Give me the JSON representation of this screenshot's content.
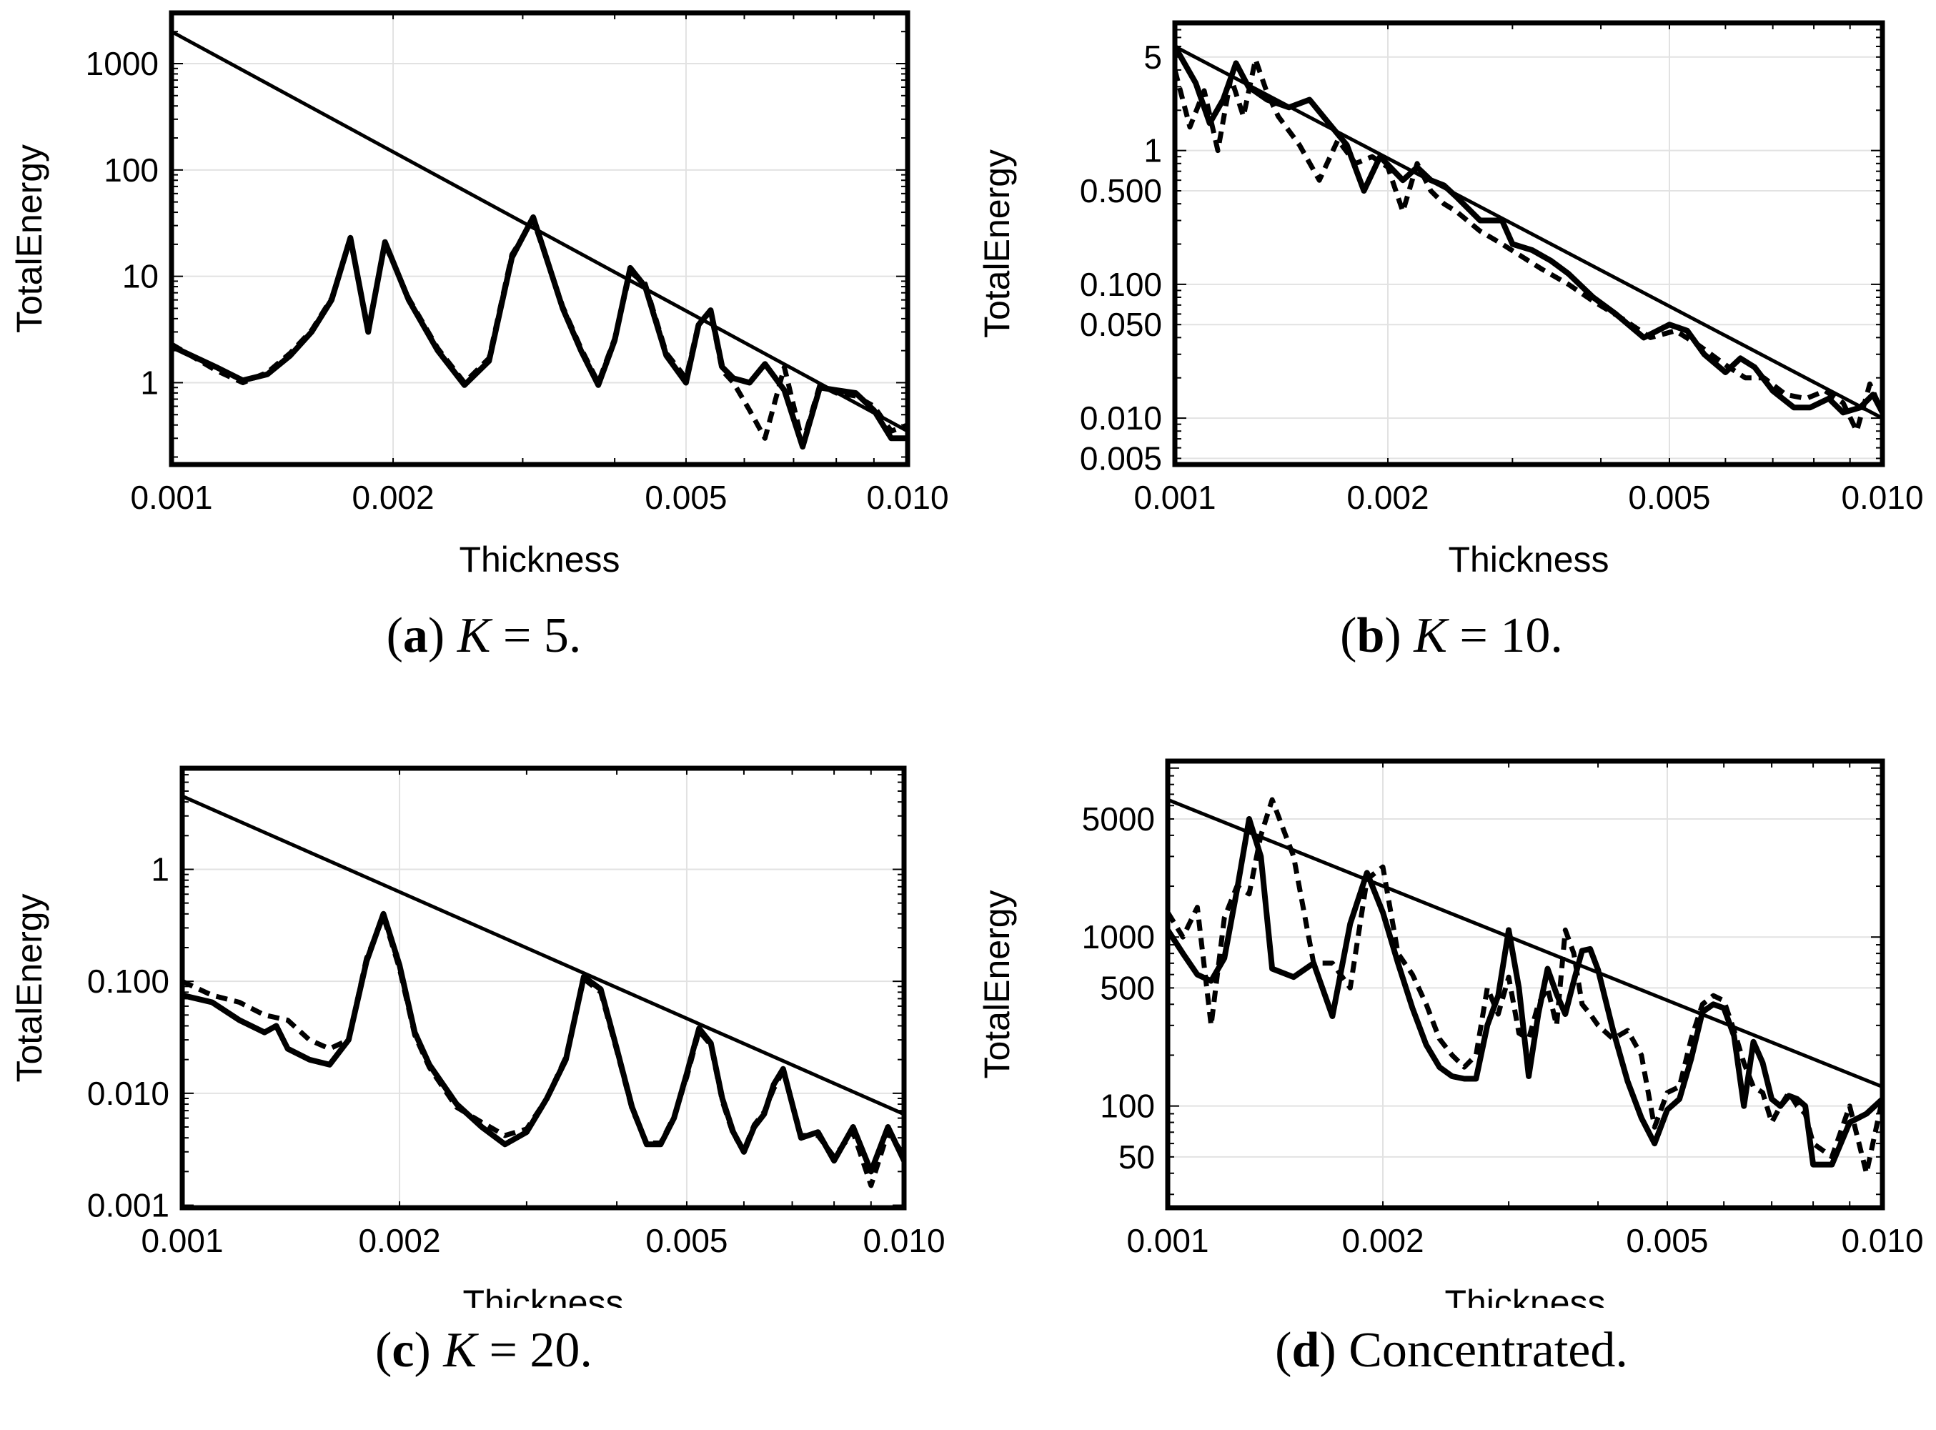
{
  "chart_data": [
    {
      "type": "line",
      "scale": "log-log",
      "xlabel": "Thickness",
      "ylabel": "TotalEnergy",
      "xlim": [
        0.001,
        0.01
      ],
      "ylim": [
        0.17,
        3000
      ],
      "xticks": [
        {
          "v": 0.001,
          "label": "0.001"
        },
        {
          "v": 0.002,
          "label": "0.002"
        },
        {
          "v": 0.005,
          "label": "0.005"
        },
        {
          "v": 0.01,
          "label": "0.010"
        }
      ],
      "yticks": [
        {
          "v": 1,
          "label": "1"
        },
        {
          "v": 10,
          "label": "10"
        },
        {
          "v": 100,
          "label": "100"
        },
        {
          "v": 1000,
          "label": "1000"
        }
      ],
      "caption": {
        "letter": "a",
        "var": "K",
        "eq": " = 5."
      },
      "series": [
        {
          "name": "bound",
          "style": "thin",
          "x": [
            0.001,
            0.01
          ],
          "y": [
            2000,
            0.35
          ]
        },
        {
          "name": "solid",
          "style": "solid",
          "x": [
            0.001,
            0.00115,
            0.00125,
            0.00135,
            0.00145,
            0.00155,
            0.00165,
            0.00175,
            0.00185,
            0.00195,
            0.0021,
            0.0023,
            0.0025,
            0.0027,
            0.0029,
            0.0031,
            0.0034,
            0.0036,
            0.0038,
            0.004,
            0.0042,
            0.0044,
            0.0047,
            0.005,
            0.0052,
            0.0054,
            0.0056,
            0.0058,
            0.0061,
            0.0064,
            0.0068,
            0.0072,
            0.0076,
            0.008,
            0.0085,
            0.009,
            0.0095,
            0.01
          ],
          "y": [
            2.2,
            1.4,
            1.05,
            1.2,
            1.8,
            3,
            6,
            23,
            3,
            21,
            6,
            2,
            0.95,
            1.6,
            15,
            36,
            5,
            2,
            0.95,
            2.5,
            12,
            8,
            1.8,
            1,
            3.5,
            4.8,
            1.4,
            1.1,
            1,
            1.5,
            0.85,
            0.25,
            0.9,
            0.85,
            0.8,
            0.55,
            0.3,
            0.3
          ]
        },
        {
          "name": "dashed",
          "style": "dashed",
          "x": [
            0.001,
            0.00115,
            0.00125,
            0.00135,
            0.00145,
            0.00155,
            0.00165,
            0.00175,
            0.00185,
            0.00195,
            0.0021,
            0.0023,
            0.0025,
            0.0027,
            0.0029,
            0.0031,
            0.0034,
            0.0036,
            0.0038,
            0.004,
            0.0042,
            0.0044,
            0.0047,
            0.005,
            0.0052,
            0.0054,
            0.0056,
            0.0058,
            0.0061,
            0.0064,
            0.0068,
            0.0072,
            0.0076,
            0.008,
            0.0085,
            0.009,
            0.0095,
            0.01
          ],
          "y": [
            2.3,
            1.3,
            1,
            1.25,
            1.9,
            3.1,
            6.2,
            22,
            3.2,
            20,
            6.2,
            2.1,
            1,
            1.7,
            16,
            34,
            5.2,
            2.1,
            1,
            2.6,
            11,
            8.5,
            1.9,
            1.1,
            3.6,
            4.6,
            1.3,
            1,
            0.55,
            0.3,
            1.4,
            0.27,
            0.95,
            0.8,
            0.75,
            0.6,
            0.35,
            0.4
          ]
        }
      ]
    },
    {
      "type": "line",
      "scale": "log-log",
      "xlabel": "Thickness",
      "ylabel": "TotalEnergy",
      "xlim": [
        0.001,
        0.01
      ],
      "ylim": [
        0.0045,
        9
      ],
      "xticks": [
        {
          "v": 0.001,
          "label": "0.001"
        },
        {
          "v": 0.002,
          "label": "0.002"
        },
        {
          "v": 0.005,
          "label": "0.005"
        },
        {
          "v": 0.01,
          "label": "0.010"
        }
      ],
      "yticks": [
        {
          "v": 0.005,
          "label": "0.005"
        },
        {
          "v": 0.01,
          "label": "0.010"
        },
        {
          "v": 0.05,
          "label": "0.050"
        },
        {
          "v": 0.1,
          "label": "0.100"
        },
        {
          "v": 0.5,
          "label": "0.500"
        },
        {
          "v": 1,
          "label": "1"
        },
        {
          "v": 5,
          "label": "5"
        }
      ],
      "caption": {
        "letter": "b",
        "var": "K",
        "eq": " = 10."
      },
      "series": [
        {
          "name": "bound",
          "style": "thin",
          "x": [
            0.001,
            0.01
          ],
          "y": [
            6,
            0.01
          ]
        },
        {
          "name": "solid",
          "style": "solid",
          "x": [
            0.001,
            0.00107,
            0.00112,
            0.00117,
            0.00122,
            0.00127,
            0.00135,
            0.00145,
            0.00155,
            0.00165,
            0.00175,
            0.00185,
            0.00195,
            0.0021,
            0.0022,
            0.0023,
            0.0024,
            0.0025,
            0.0027,
            0.0029,
            0.003,
            0.0032,
            0.0034,
            0.0036,
            0.0039,
            0.0042,
            0.0046,
            0.005,
            0.0053,
            0.0056,
            0.006,
            0.0063,
            0.0066,
            0.007,
            0.0075,
            0.0079,
            0.0084,
            0.0088,
            0.0093,
            0.0097,
            0.01
          ],
          "y": [
            6,
            3.2,
            1.6,
            2.4,
            4.5,
            3,
            2.4,
            2.1,
            2.4,
            1.6,
            1.1,
            0.5,
            0.9,
            0.6,
            0.75,
            0.6,
            0.55,
            0.45,
            0.3,
            0.3,
            0.2,
            0.18,
            0.15,
            0.12,
            0.08,
            0.06,
            0.04,
            0.05,
            0.045,
            0.03,
            0.022,
            0.028,
            0.024,
            0.016,
            0.012,
            0.012,
            0.014,
            0.011,
            0.012,
            0.015,
            0.011
          ]
        },
        {
          "name": "dashed",
          "style": "dashed",
          "x": [
            0.001,
            0.00105,
            0.0011,
            0.00115,
            0.0012,
            0.00125,
            0.0013,
            0.00135,
            0.0014,
            0.0015,
            0.0016,
            0.0017,
            0.0018,
            0.0019,
            0.002,
            0.0021,
            0.0022,
            0.0023,
            0.0024,
            0.0025,
            0.0027,
            0.0029,
            0.0031,
            0.0033,
            0.0036,
            0.0039,
            0.0043,
            0.0047,
            0.0051,
            0.0055,
            0.006,
            0.0064,
            0.0068,
            0.0073,
            0.0078,
            0.0083,
            0.0088,
            0.0092,
            0.0096,
            0.01
          ],
          "y": [
            4,
            1.5,
            2.8,
            1,
            3.5,
            1.8,
            4.8,
            2.7,
            1.8,
            1.1,
            0.6,
            1.2,
            0.8,
            0.9,
            0.75,
            0.35,
            0.8,
            0.5,
            0.4,
            0.35,
            0.25,
            0.2,
            0.16,
            0.13,
            0.1,
            0.075,
            0.055,
            0.04,
            0.045,
            0.035,
            0.025,
            0.02,
            0.02,
            0.015,
            0.014,
            0.016,
            0.013,
            0.008,
            0.018,
            0.011
          ]
        }
      ]
    },
    {
      "type": "line",
      "scale": "log-log",
      "xlabel": "Thickness",
      "ylabel": "TotalEnergy",
      "xlim": [
        0.001,
        0.01
      ],
      "ylim": [
        0.00095,
        8
      ],
      "xticks": [
        {
          "v": 0.001,
          "label": "0.001"
        },
        {
          "v": 0.002,
          "label": "0.002"
        },
        {
          "v": 0.005,
          "label": "0.005"
        },
        {
          "v": 0.01,
          "label": "0.010"
        }
      ],
      "yticks": [
        {
          "v": 0.001,
          "label": "0.001"
        },
        {
          "v": 0.01,
          "label": "0.010"
        },
        {
          "v": 0.1,
          "label": "0.100"
        },
        {
          "v": 1,
          "label": "1"
        }
      ],
      "caption": {
        "letter": "c",
        "var": "K",
        "eq": " = 20."
      },
      "series": [
        {
          "name": "bound",
          "style": "thin",
          "x": [
            0.001,
            0.01
          ],
          "y": [
            4.5,
            0.0065
          ]
        },
        {
          "name": "solid",
          "style": "solid",
          "x": [
            0.001,
            0.0011,
            0.0012,
            0.0013,
            0.00135,
            0.0014,
            0.0015,
            0.0016,
            0.0017,
            0.0018,
            0.0019,
            0.002,
            0.0021,
            0.0022,
            0.0024,
            0.0026,
            0.0028,
            0.003,
            0.0032,
            0.0034,
            0.0036,
            0.0038,
            0.004,
            0.0042,
            0.0044,
            0.0046,
            0.0048,
            0.005,
            0.0052,
            0.0054,
            0.0056,
            0.0058,
            0.006,
            0.0062,
            0.0064,
            0.0066,
            0.0068,
            0.0072,
            0.0076,
            0.008,
            0.0085,
            0.009,
            0.0095,
            0.01
          ],
          "y": [
            0.075,
            0.065,
            0.045,
            0.035,
            0.04,
            0.025,
            0.02,
            0.018,
            0.03,
            0.15,
            0.4,
            0.14,
            0.035,
            0.018,
            0.008,
            0.005,
            0.0035,
            0.0045,
            0.009,
            0.02,
            0.11,
            0.085,
            0.025,
            0.0075,
            0.0035,
            0.0035,
            0.006,
            0.015,
            0.038,
            0.028,
            0.009,
            0.0045,
            0.003,
            0.005,
            0.0065,
            0.012,
            0.0165,
            0.004,
            0.0045,
            0.0025,
            0.005,
            0.002,
            0.005,
            0.0025
          ]
        },
        {
          "name": "dashed",
          "style": "dashed",
          "x": [
            0.001,
            0.0011,
            0.0012,
            0.0013,
            0.0014,
            0.0015,
            0.0016,
            0.0017,
            0.0018,
            0.0019,
            0.002,
            0.0021,
            0.0022,
            0.0024,
            0.0026,
            0.0028,
            0.003,
            0.0032,
            0.0034,
            0.0036,
            0.0038,
            0.004,
            0.0042,
            0.0044,
            0.0046,
            0.0048,
            0.005,
            0.0052,
            0.0054,
            0.0056,
            0.0058,
            0.006,
            0.0062,
            0.0064,
            0.0066,
            0.0068,
            0.0072,
            0.0076,
            0.008,
            0.0085,
            0.009,
            0.0095,
            0.01
          ],
          "y": [
            0.1,
            0.075,
            0.065,
            0.05,
            0.045,
            0.03,
            0.025,
            0.03,
            0.16,
            0.38,
            0.13,
            0.033,
            0.017,
            0.0075,
            0.0055,
            0.0042,
            0.0048,
            0.009,
            0.021,
            0.105,
            0.08,
            0.024,
            0.0072,
            0.0036,
            0.0036,
            0.0062,
            0.014,
            0.036,
            0.027,
            0.0085,
            0.0043,
            0.0031,
            0.0052,
            0.0068,
            0.011,
            0.016,
            0.0042,
            0.0042,
            0.0027,
            0.0045,
            0.0015,
            0.0045,
            0.0028
          ]
        }
      ]
    },
    {
      "type": "line",
      "scale": "log-log",
      "xlabel": "Thickness",
      "ylabel": "TotalEnergy",
      "xlim": [
        0.001,
        0.01
      ],
      "ylim": [
        25,
        11000
      ],
      "xticks": [
        {
          "v": 0.001,
          "label": "0.001"
        },
        {
          "v": 0.002,
          "label": "0.002"
        },
        {
          "v": 0.005,
          "label": "0.005"
        },
        {
          "v": 0.01,
          "label": "0.010"
        }
      ],
      "yticks": [
        {
          "v": 50,
          "label": "50"
        },
        {
          "v": 100,
          "label": "100"
        },
        {
          "v": 500,
          "label": "500"
        },
        {
          "v": 1000,
          "label": "1000"
        },
        {
          "v": 5000,
          "label": "5000"
        }
      ],
      "caption": {
        "letter": "d",
        "var": "",
        "eq": " Concentrated."
      },
      "series": [
        {
          "name": "bound",
          "style": "thin",
          "x": [
            0.001,
            0.01
          ],
          "y": [
            6500,
            130
          ]
        },
        {
          "name": "solid",
          "style": "solid",
          "x": [
            0.001,
            0.00105,
            0.0011,
            0.00115,
            0.0012,
            0.00125,
            0.0013,
            0.00135,
            0.0014,
            0.0015,
            0.0016,
            0.0017,
            0.0018,
            0.0019,
            0.002,
            0.0021,
            0.0022,
            0.0023,
            0.0024,
            0.0025,
            0.0026,
            0.0027,
            0.0028,
            0.0029,
            0.003,
            0.0031,
            0.0032,
            0.0033,
            0.0034,
            0.0035,
            0.0036,
            0.0037,
            0.0038,
            0.0039,
            0.004,
            0.0042,
            0.0044,
            0.0046,
            0.0048,
            0.005,
            0.0052,
            0.0054,
            0.0056,
            0.0058,
            0.006,
            0.0062,
            0.0064,
            0.0066,
            0.0068,
            0.007,
            0.0072,
            0.0074,
            0.0076,
            0.0078,
            0.008,
            0.0085,
            0.009,
            0.0095,
            0.01
          ],
          "y": [
            1100,
            800,
            600,
            550,
            750,
            1900,
            5000,
            3000,
            650,
            580,
            700,
            340,
            1200,
            2400,
            1400,
            700,
            380,
            230,
            170,
            150,
            145,
            145,
            300,
            450,
            1100,
            500,
            150,
            350,
            650,
            460,
            350,
            550,
            830,
            850,
            640,
            280,
            140,
            85,
            60,
            95,
            110,
            190,
            360,
            400,
            380,
            260,
            100,
            240,
            180,
            110,
            100,
            115,
            110,
            100,
            45,
            45,
            80,
            90,
            110
          ]
        },
        {
          "name": "dashed",
          "style": "dashed",
          "x": [
            0.001,
            0.00105,
            0.0011,
            0.00115,
            0.0012,
            0.00125,
            0.0013,
            0.00135,
            0.0014,
            0.0015,
            0.0016,
            0.0017,
            0.0018,
            0.0019,
            0.002,
            0.0021,
            0.0022,
            0.0023,
            0.0024,
            0.0025,
            0.0026,
            0.0027,
            0.0028,
            0.0029,
            0.003,
            0.0031,
            0.0032,
            0.0033,
            0.0034,
            0.0035,
            0.0036,
            0.0037,
            0.0038,
            0.0039,
            0.004,
            0.0042,
            0.0044,
            0.0046,
            0.0048,
            0.005,
            0.0052,
            0.0054,
            0.0056,
            0.0058,
            0.006,
            0.0062,
            0.0064,
            0.0066,
            0.0068,
            0.007,
            0.0072,
            0.0074,
            0.0076,
            0.0078,
            0.008,
            0.0085,
            0.009,
            0.0095,
            0.01
          ],
          "y": [
            1400,
            1000,
            1500,
            300,
            1300,
            2000,
            1800,
            4000,
            6500,
            3000,
            700,
            700,
            500,
            2200,
            2600,
            800,
            600,
            400,
            250,
            200,
            170,
            200,
            500,
            350,
            580,
            270,
            250,
            400,
            500,
            300,
            1100,
            800,
            400,
            350,
            300,
            250,
            280,
            200,
            75,
            120,
            130,
            250,
            400,
            450,
            420,
            280,
            180,
            130,
            120,
            80,
            100,
            120,
            100,
            90,
            60,
            50,
            100,
            40,
            110
          ]
        }
      ]
    }
  ]
}
